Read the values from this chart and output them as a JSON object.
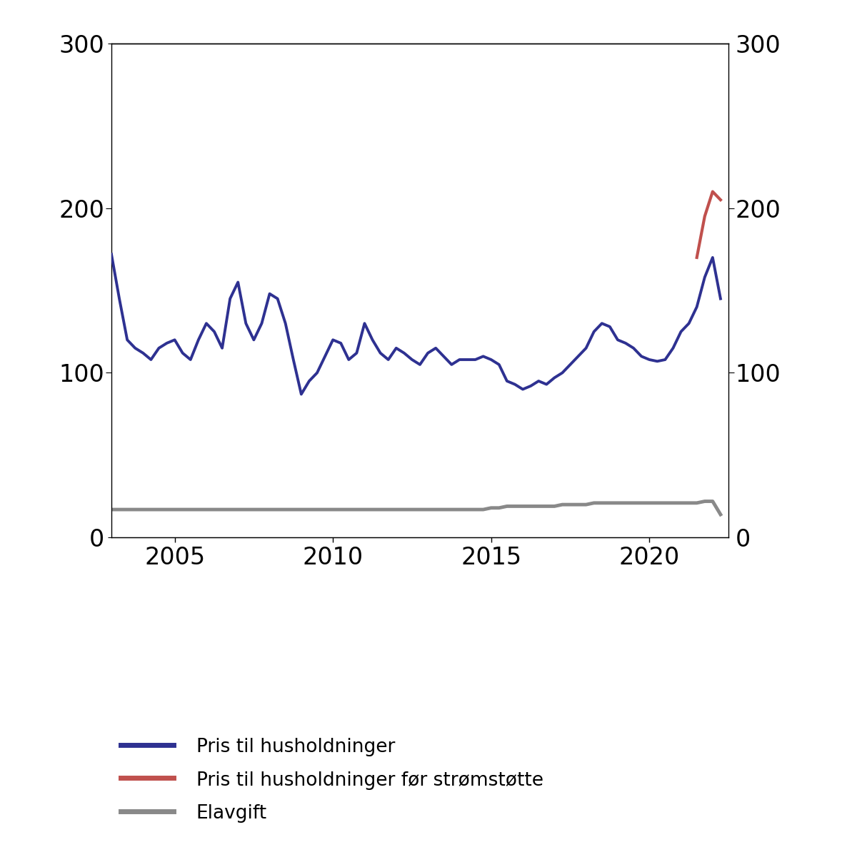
{
  "title": "",
  "blue_color": "#2E3191",
  "red_color": "#C0504D",
  "gray_color": "#898989",
  "ylim": [
    0,
    300
  ],
  "yticks_labels": [
    0,
    100,
    200,
    300
  ],
  "yticks_inner": [
    100,
    200
  ],
  "background_color": "#ffffff",
  "legend_labels": [
    "Pris til husholdninger",
    "Pris til husholdninger før strømstøtte",
    "Elavgift"
  ],
  "xticks": [
    2005,
    2010,
    2015,
    2020
  ],
  "quarters_blue": [
    2003.0,
    2003.25,
    2003.5,
    2003.75,
    2004.0,
    2004.25,
    2004.5,
    2004.75,
    2005.0,
    2005.25,
    2005.5,
    2005.75,
    2006.0,
    2006.25,
    2006.5,
    2006.75,
    2007.0,
    2007.25,
    2007.5,
    2007.75,
    2008.0,
    2008.25,
    2008.5,
    2008.75,
    2009.0,
    2009.25,
    2009.5,
    2009.75,
    2010.0,
    2010.25,
    2010.5,
    2010.75,
    2011.0,
    2011.25,
    2011.5,
    2011.75,
    2012.0,
    2012.25,
    2012.5,
    2012.75,
    2013.0,
    2013.25,
    2013.5,
    2013.75,
    2014.0,
    2014.25,
    2014.5,
    2014.75,
    2015.0,
    2015.25,
    2015.5,
    2015.75,
    2016.0,
    2016.25,
    2016.5,
    2016.75,
    2017.0,
    2017.25,
    2017.5,
    2017.75,
    2018.0,
    2018.25,
    2018.5,
    2018.75,
    2019.0,
    2019.25,
    2019.5,
    2019.75,
    2020.0,
    2020.25,
    2020.5,
    2020.75,
    2021.0,
    2021.25,
    2021.5,
    2021.75,
    2022.0,
    2022.25
  ],
  "values_blue": [
    172,
    145,
    120,
    115,
    112,
    108,
    115,
    118,
    120,
    112,
    108,
    120,
    130,
    125,
    115,
    145,
    155,
    130,
    120,
    130,
    148,
    145,
    130,
    108,
    87,
    95,
    100,
    110,
    120,
    118,
    108,
    112,
    130,
    120,
    112,
    108,
    115,
    112,
    108,
    105,
    112,
    115,
    110,
    105,
    108,
    108,
    108,
    110,
    108,
    105,
    95,
    93,
    90,
    92,
    95,
    93,
    97,
    100,
    105,
    110,
    115,
    125,
    130,
    128,
    120,
    118,
    115,
    110,
    108,
    107,
    108,
    115,
    125,
    130,
    140,
    158,
    170,
    145
  ],
  "quarters_red": [
    2021.5,
    2021.75,
    2022.0,
    2022.25
  ],
  "values_red": [
    170,
    195,
    210,
    205
  ],
  "quarters_gray": [
    2003.0,
    2003.25,
    2003.5,
    2003.75,
    2004.0,
    2004.25,
    2004.5,
    2004.75,
    2005.0,
    2005.25,
    2005.5,
    2005.75,
    2006.0,
    2006.25,
    2006.5,
    2006.75,
    2007.0,
    2007.25,
    2007.5,
    2007.75,
    2008.0,
    2008.25,
    2008.5,
    2008.75,
    2009.0,
    2009.25,
    2009.5,
    2009.75,
    2010.0,
    2010.25,
    2010.5,
    2010.75,
    2011.0,
    2011.25,
    2011.5,
    2011.75,
    2012.0,
    2012.25,
    2012.5,
    2012.75,
    2013.0,
    2013.25,
    2013.5,
    2013.75,
    2014.0,
    2014.25,
    2014.5,
    2014.75,
    2015.0,
    2015.25,
    2015.5,
    2015.75,
    2016.0,
    2016.25,
    2016.5,
    2016.75,
    2017.0,
    2017.25,
    2017.5,
    2017.75,
    2018.0,
    2018.25,
    2018.5,
    2018.75,
    2019.0,
    2019.25,
    2019.5,
    2019.75,
    2020.0,
    2020.25,
    2020.5,
    2020.75,
    2021.0,
    2021.25,
    2021.5,
    2021.75,
    2022.0,
    2022.25
  ],
  "values_gray": [
    17,
    17,
    17,
    17,
    17,
    17,
    17,
    17,
    17,
    17,
    17,
    17,
    17,
    17,
    17,
    17,
    17,
    17,
    17,
    17,
    17,
    17,
    17,
    17,
    17,
    17,
    17,
    17,
    17,
    17,
    17,
    17,
    17,
    17,
    17,
    17,
    17,
    17,
    17,
    17,
    17,
    17,
    17,
    17,
    17,
    17,
    17,
    17,
    18,
    18,
    19,
    19,
    19,
    19,
    19,
    19,
    19,
    20,
    20,
    20,
    20,
    21,
    21,
    21,
    21,
    21,
    21,
    21,
    21,
    21,
    21,
    21,
    21,
    21,
    21,
    22,
    22,
    14
  ],
  "linewidth_blue": 2.8,
  "linewidth_red": 3.0,
  "linewidth_gray": 3.5,
  "xmin": 2003.0,
  "xmax": 2022.5,
  "legend_fontsize": 19,
  "tick_fontsize": 24,
  "legend_linewidth": 5,
  "spine_color": "#000000"
}
